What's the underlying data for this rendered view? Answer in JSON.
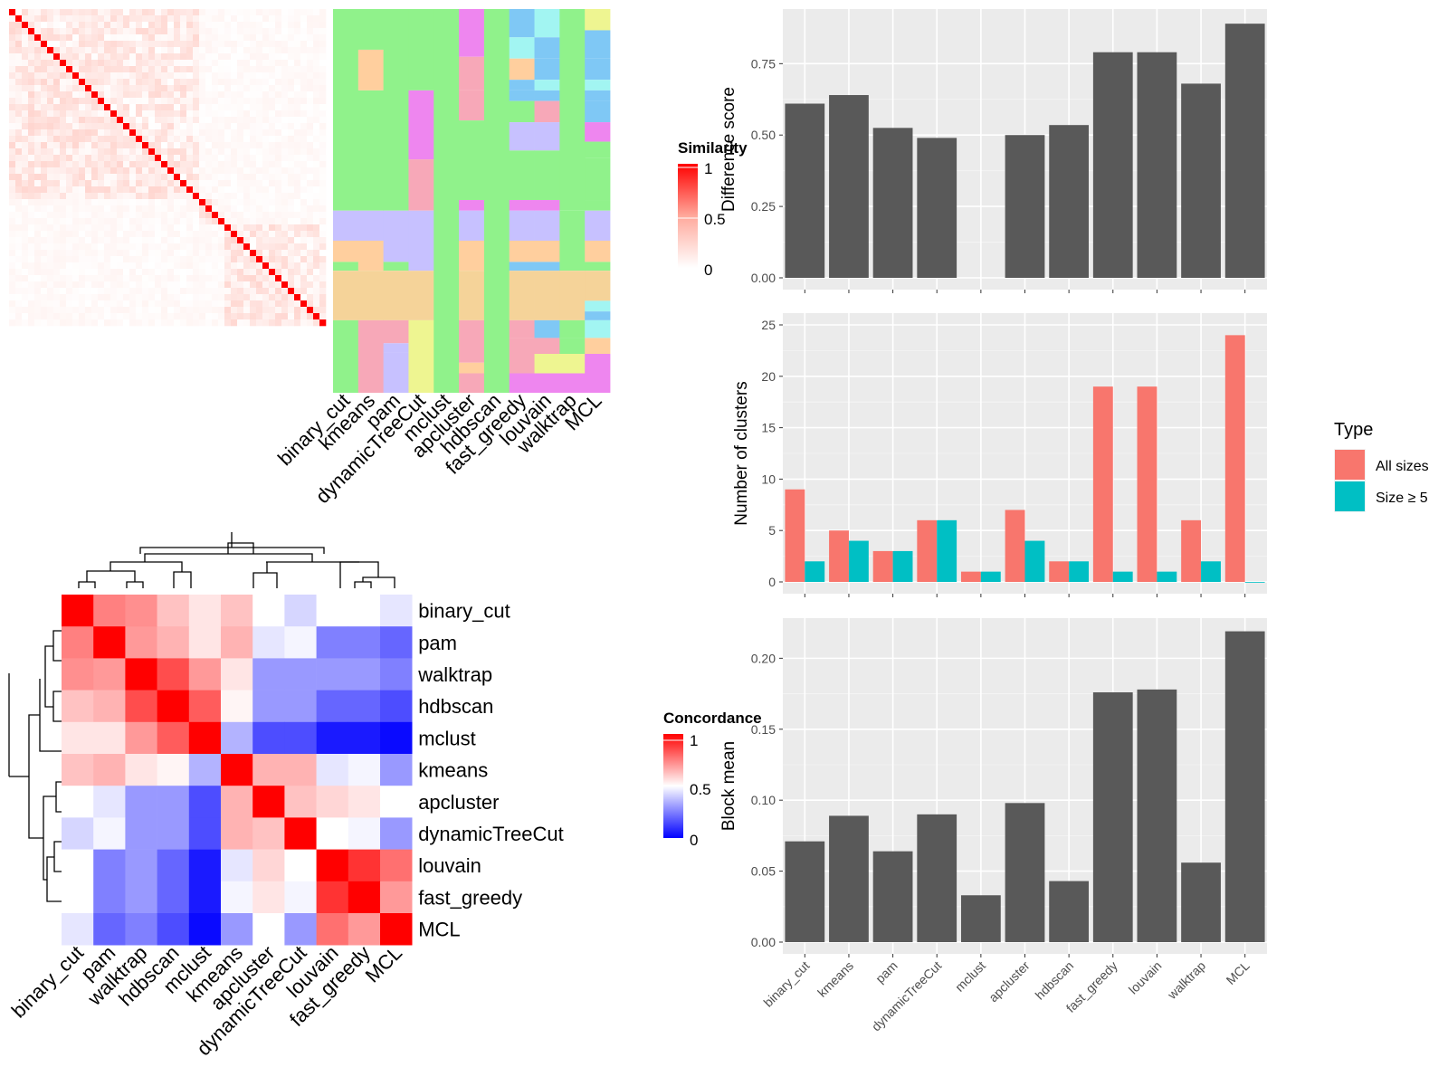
{
  "chart_data": [
    {
      "type": "heatmap",
      "panel": "similarity_matrix",
      "legend_title": "Similarity",
      "legend_ticks": [
        "1",
        "0.5",
        "0"
      ],
      "legend_colors": {
        "high": "#ff0000",
        "mid": "#ffa89b",
        "low": "#ffffff"
      },
      "n_terms": 50
    },
    {
      "type": "heatmap",
      "panel": "cluster_assignments",
      "methods": [
        "binary_cut",
        "kmeans",
        "pam",
        "dynamicTreeCut",
        "mclust",
        "apcluster",
        "hdbscan",
        "fast_greedy",
        "louvain",
        "walktrap",
        "MCL"
      ]
    },
    {
      "type": "heatmap",
      "panel": "concordance",
      "legend_title": "Concordance",
      "legend_ticks": [
        "1",
        "0.5",
        "0"
      ],
      "legend_colors": {
        "high": "#ff0000",
        "mid": "#ffffff",
        "low": "#0000ff"
      },
      "rows": [
        "binary_cut",
        "pam",
        "walktrap",
        "hdbscan",
        "mclust",
        "kmeans",
        "apcluster",
        "dynamicTreeCut",
        "louvain",
        "fast_greedy",
        "MCL"
      ],
      "columns": [
        "binary_cut",
        "pam",
        "walktrap",
        "hdbscan",
        "mclust",
        "kmeans",
        "apcluster",
        "dynamicTreeCut",
        "louvain",
        "fast_greedy",
        "MCL"
      ],
      "values": [
        [
          1.0,
          0.75,
          0.72,
          0.62,
          0.55,
          0.62,
          0.5,
          0.42,
          0.5,
          0.5,
          0.45
        ],
        [
          0.75,
          1.0,
          0.7,
          0.65,
          0.55,
          0.65,
          0.45,
          0.48,
          0.25,
          0.25,
          0.2
        ],
        [
          0.72,
          0.7,
          1.0,
          0.85,
          0.7,
          0.55,
          0.3,
          0.3,
          0.3,
          0.3,
          0.25
        ],
        [
          0.62,
          0.65,
          0.85,
          1.0,
          0.82,
          0.52,
          0.3,
          0.3,
          0.2,
          0.2,
          0.15
        ],
        [
          0.55,
          0.55,
          0.7,
          0.82,
          1.0,
          0.35,
          0.15,
          0.15,
          0.05,
          0.05,
          0.02
        ],
        [
          0.62,
          0.65,
          0.55,
          0.52,
          0.35,
          1.0,
          0.65,
          0.65,
          0.45,
          0.48,
          0.3
        ],
        [
          0.5,
          0.45,
          0.3,
          0.3,
          0.15,
          0.65,
          1.0,
          0.62,
          0.58,
          0.55,
          0.5
        ],
        [
          0.42,
          0.48,
          0.3,
          0.3,
          0.15,
          0.65,
          0.62,
          1.0,
          0.5,
          0.48,
          0.3
        ],
        [
          0.5,
          0.25,
          0.3,
          0.2,
          0.05,
          0.45,
          0.58,
          0.5,
          1.0,
          0.9,
          0.78
        ],
        [
          0.5,
          0.25,
          0.3,
          0.2,
          0.05,
          0.48,
          0.55,
          0.48,
          0.9,
          1.0,
          0.7
        ],
        [
          0.45,
          0.2,
          0.25,
          0.15,
          0.02,
          0.3,
          0.5,
          0.3,
          0.78,
          0.7,
          1.0
        ]
      ]
    },
    {
      "type": "bar",
      "panel": "difference_score",
      "categories": [
        "binary_cut",
        "kmeans",
        "pam",
        "dynamicTreeCut",
        "mclust",
        "apcluster",
        "hdbscan",
        "fast_greedy",
        "louvain",
        "walktrap",
        "MCL"
      ],
      "values": [
        0.61,
        0.64,
        0.525,
        0.49,
        null,
        0.5,
        0.535,
        0.79,
        0.79,
        0.68,
        0.89
      ],
      "ylabel": "Difference score",
      "ylim": [
        0,
        0.9
      ],
      "y_ticks": [
        0.0,
        0.25,
        0.5,
        0.75
      ],
      "y_tick_labels": [
        "0.00",
        "0.25",
        "0.50",
        "0.75"
      ],
      "bar_color": "#595959",
      "grid": true
    },
    {
      "type": "bar",
      "panel": "number_of_clusters",
      "categories": [
        "binary_cut",
        "kmeans",
        "pam",
        "dynamicTreeCut",
        "mclust",
        "apcluster",
        "hdbscan",
        "fast_greedy",
        "louvain",
        "walktrap",
        "MCL"
      ],
      "series": [
        {
          "name": "All sizes",
          "color": "#f8766d",
          "values": [
            9,
            5,
            3,
            6,
            1,
            7,
            2,
            19,
            19,
            6,
            24
          ]
        },
        {
          "name": "Size ≥ 5",
          "color": "#00bfc4",
          "values": [
            2,
            4,
            3,
            6,
            1,
            4,
            2,
            1,
            1,
            2,
            0
          ]
        }
      ],
      "ylabel": "Number of clusters",
      "ylim": [
        0,
        25
      ],
      "y_ticks": [
        0,
        5,
        10,
        15,
        20,
        25
      ],
      "y_tick_labels": [
        "0",
        "5",
        "10",
        "15",
        "20",
        "25"
      ],
      "legend_title": "Type",
      "legend_position": "right",
      "grid": true
    },
    {
      "type": "bar",
      "panel": "block_mean",
      "categories": [
        "binary_cut",
        "kmeans",
        "pam",
        "dynamicTreeCut",
        "mclust",
        "apcluster",
        "hdbscan",
        "fast_greedy",
        "louvain",
        "walktrap",
        "MCL"
      ],
      "values": [
        0.071,
        0.089,
        0.064,
        0.09,
        0.033,
        0.098,
        0.043,
        0.176,
        0.178,
        0.056,
        0.219
      ],
      "ylabel": "Block mean",
      "ylim": [
        0,
        0.22
      ],
      "y_ticks": [
        0.0,
        0.05,
        0.1,
        0.15,
        0.2
      ],
      "y_tick_labels": [
        "0.00",
        "0.05",
        "0.10",
        "0.15",
        "0.20"
      ],
      "x_tick_labels": [
        "binary_cut",
        "kmeans",
        "pam",
        "dynamicTreeCut",
        "mclust",
        "apcluster",
        "hdbscan",
        "fast_greedy",
        "louvain",
        "walktrap",
        "MCL"
      ],
      "bar_color": "#595959",
      "grid": true
    }
  ]
}
